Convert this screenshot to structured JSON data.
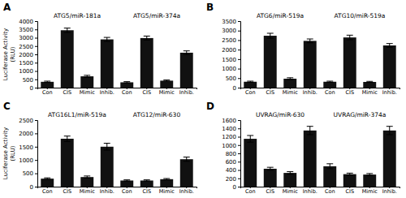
{
  "chart_data": [
    {
      "type": "bar",
      "title": "A",
      "annotations": [
        "ATG5/miR-181a",
        "ATG5/miR-374a"
      ],
      "y_label": "Luciferase Activity\n(RLU)",
      "categories": [
        "Con",
        "CIS",
        "Mimic",
        "Inhib.",
        "Con",
        "CIS",
        "Mimic",
        "Inhib."
      ],
      "values": [
        350,
        3450,
        680,
        2900,
        320,
        2980,
        420,
        2100
      ],
      "errors": [
        40,
        130,
        60,
        120,
        40,
        120,
        40,
        110
      ],
      "color": "#111111",
      "ylim": [
        0,
        4000
      ],
      "yticks": [
        0,
        500,
        1000,
        1500,
        2000,
        2500,
        3000,
        3500,
        4000
      ]
    },
    {
      "type": "bar",
      "title": "B",
      "annotations": [
        "ATG6/miR-519a",
        "ATG10/miR-519a"
      ],
      "categories": [
        "Con",
        "CIS",
        "Mimic",
        "Inhib.",
        "Con",
        "CIS",
        "Mimic",
        "Inhib."
      ],
      "values": [
        310,
        2730,
        470,
        2460,
        310,
        2640,
        300,
        2220
      ],
      "errors": [
        30,
        130,
        50,
        100,
        30,
        120,
        30,
        100
      ],
      "color": "#111111",
      "ylim": [
        0,
        3500
      ],
      "yticks": [
        0,
        500,
        1000,
        1500,
        2000,
        2500,
        3000,
        3500
      ]
    },
    {
      "type": "bar",
      "title": "C",
      "annotations": [
        "ATG16L1/miR-519a",
        "ATG12/miR-630"
      ],
      "y_label": "Luciferase Activity\n(RLU)",
      "categories": [
        "Con",
        "CIS",
        "Mimic",
        "Inhib.",
        "Con",
        "CIS",
        "Mimic",
        "Inhib."
      ],
      "values": [
        300,
        1800,
        360,
        1500,
        230,
        230,
        280,
        1030
      ],
      "errors": [
        30,
        100,
        40,
        130,
        25,
        25,
        25,
        80
      ],
      "color": "#111111",
      "ylim": [
        0,
        2500
      ],
      "yticks": [
        0,
        500,
        1000,
        1500,
        2000,
        2500
      ]
    },
    {
      "type": "bar",
      "title": "D",
      "annotations": [
        "UVRAG/miR-630",
        "UVRAG/miR-374a"
      ],
      "categories": [
        "Con",
        "CIS",
        "Mimic",
        "Inhib.",
        "Con",
        "CIS",
        "Mimic",
        "Inhib."
      ],
      "values": [
        1150,
        430,
        330,
        1350,
        490,
        300,
        290,
        1350
      ],
      "errors": [
        80,
        35,
        30,
        100,
        60,
        25,
        25,
        100
      ],
      "color": "#111111",
      "ylim": [
        0,
        1600
      ],
      "yticks": [
        0,
        200,
        400,
        600,
        800,
        1000,
        1200,
        1400,
        1600
      ]
    }
  ]
}
